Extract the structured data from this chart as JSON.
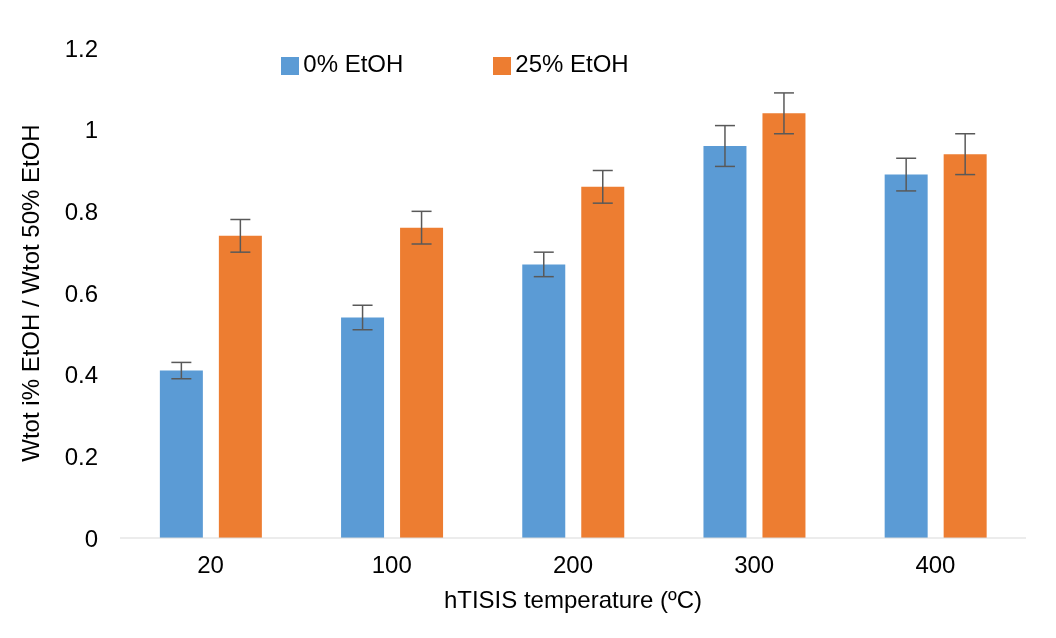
{
  "chart_data": {
    "type": "bar",
    "xlabel": "hTISIS temperature (ºC)",
    "ylabel": "Wtot i% EtOH / Wtot 50% EtOH",
    "categories": [
      "20",
      "100",
      "200",
      "300",
      "400"
    ],
    "series": [
      {
        "name": "0% EtOH",
        "color": "#5b9bd5",
        "values": [
          0.41,
          0.54,
          0.67,
          0.96,
          0.89
        ],
        "errors": [
          0.02,
          0.03,
          0.03,
          0.05,
          0.04
        ]
      },
      {
        "name": "25% EtOH",
        "color": "#ed7d31",
        "values": [
          0.74,
          0.76,
          0.86,
          1.04,
          0.94
        ],
        "errors": [
          0.04,
          0.04,
          0.04,
          0.05,
          0.05
        ]
      }
    ],
    "ylim": [
      0,
      1.2
    ],
    "yticks": [
      0,
      0.2,
      0.4,
      0.6,
      0.8,
      1,
      1.2
    ],
    "grid": false,
    "legend": "top"
  }
}
